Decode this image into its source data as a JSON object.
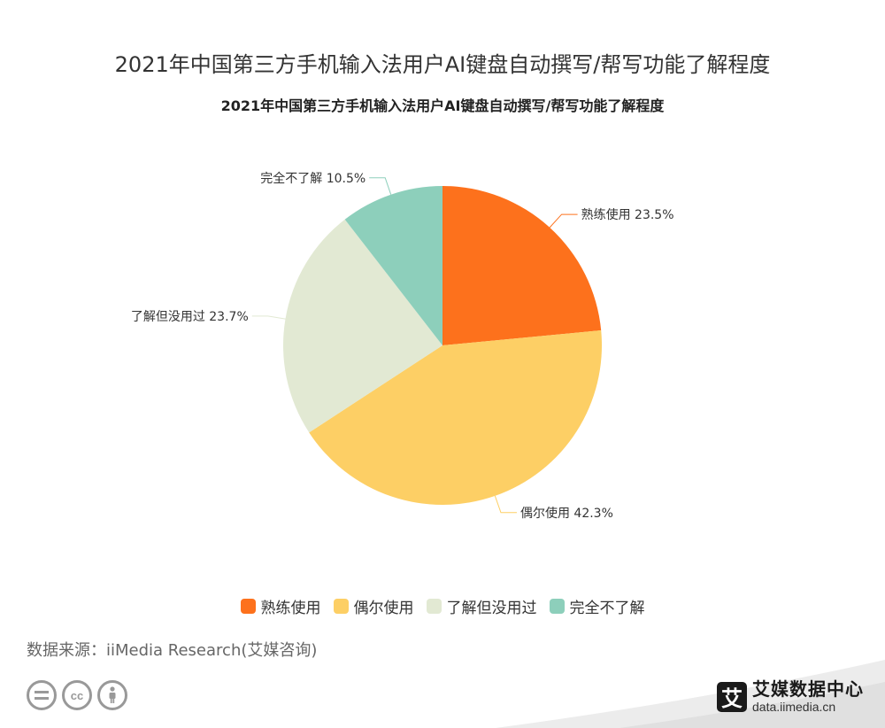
{
  "header": {
    "title": "2021年中国第三方手机输入法用户AI键盘自动撰写/帮写功能了解程度"
  },
  "chart_data": {
    "type": "pie",
    "title": "2021年中国第三方手机输入法用户AI键盘自动撰写/帮写功能了解程度",
    "slices": [
      {
        "label": "熟练使用",
        "value": 23.5,
        "display": "熟练使用 23.5%",
        "color": "#fd711c"
      },
      {
        "label": "偶尔使用",
        "value": 42.3,
        "display": "偶尔使用 42.3%",
        "color": "#fdcf65"
      },
      {
        "label": "了解但没用过",
        "value": 23.7,
        "display": "了解但没用过 23.7%",
        "color": "#e2e9d3"
      },
      {
        "label": "完全不了解",
        "value": 10.5,
        "display": "完全不了解 10.5%",
        "color": "#8dcfbb"
      }
    ],
    "unit": "%",
    "legend_position": "bottom"
  },
  "legend": {
    "items": [
      {
        "label": "熟练使用",
        "color": "#fd711c"
      },
      {
        "label": "偶尔使用",
        "color": "#fdcf65"
      },
      {
        "label": "了解但没用过",
        "color": "#e2e9d3"
      },
      {
        "label": "完全不了解",
        "color": "#8dcfbb"
      }
    ]
  },
  "footer": {
    "source": "数据来源：iiMedia Research(艾媒咨询)",
    "license_icons": [
      "equals-icon",
      "cc-icon",
      "person-icon"
    ],
    "cc_text": "cc",
    "brand_logo": "艾",
    "brand_name": "艾媒数据中心",
    "brand_url": "data.iimedia.cn"
  }
}
